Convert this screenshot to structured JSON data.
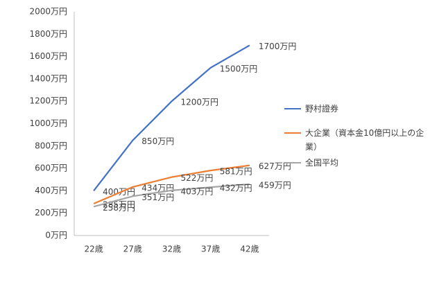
{
  "chart_data": {
    "type": "line",
    "categories": [
      "22歳",
      "27歳",
      "32歳",
      "37歳",
      "42歳"
    ],
    "series": [
      {
        "name": "野村證券",
        "color": "#4472c4",
        "values": [
          400,
          850,
          1200,
          1500,
          1700
        ],
        "value_labels": [
          "400万円",
          "850万円",
          "1200万円",
          "1500万円",
          "1700万円"
        ]
      },
      {
        "name": "大企業（資本金10億円以上の企業）",
        "color": "#ed7d31",
        "values": [
          285,
          434,
          522,
          581,
          627
        ],
        "value_labels": [
          "285万円",
          "434万円",
          "522万円",
          "581万円",
          "627万円"
        ]
      },
      {
        "name": "全国平均",
        "color": "#a5a5a5",
        "values": [
          258,
          351,
          403,
          432,
          459
        ],
        "value_labels": [
          "258万円",
          "351万円",
          "403万円",
          "432万円",
          "459万円"
        ]
      }
    ],
    "ylim": [
      0,
      2000
    ],
    "yticks": [
      {
        "value": 0,
        "label": "0万円"
      },
      {
        "value": 200,
        "label": "200万円"
      },
      {
        "value": 400,
        "label": "400万円"
      },
      {
        "value": 600,
        "label": "600万円"
      },
      {
        "value": 800,
        "label": "800万円"
      },
      {
        "value": 1000,
        "label": "1000万円"
      },
      {
        "value": 1200,
        "label": "1200万円"
      },
      {
        "value": 1400,
        "label": "1400万円"
      },
      {
        "value": 1600,
        "label": "1600万円"
      },
      {
        "value": 1800,
        "label": "1800万円"
      },
      {
        "value": 2000,
        "label": "2000万円"
      }
    ],
    "grid": false
  }
}
